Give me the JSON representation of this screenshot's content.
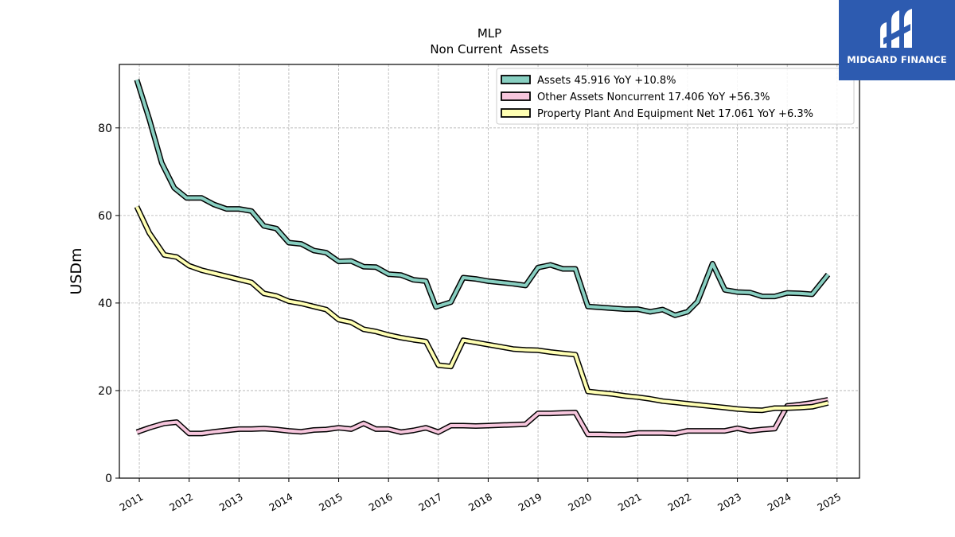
{
  "chart_data": {
    "type": "line",
    "title": "MLP",
    "subtitle": "Non Current  Assets",
    "ylabel": "USDm",
    "xlim": [
      2010.6,
      2025.45
    ],
    "ylim": [
      0,
      94.5
    ],
    "yticks": [
      0,
      20,
      40,
      60,
      80
    ],
    "xticks": [
      "2011",
      "2012",
      "2013",
      "2014",
      "2015",
      "2016",
      "2017",
      "2018",
      "2019",
      "2020",
      "2021",
      "2022",
      "2023",
      "2024",
      "2025"
    ],
    "grid": true,
    "legend_position": "top-right",
    "series": [
      {
        "name": "Assets  45.916 YoY +10.8%",
        "color": "#88cfc1",
        "points": [
          [
            2010.95,
            91
          ],
          [
            2011.2,
            82
          ],
          [
            2011.45,
            72
          ],
          [
            2011.7,
            66.3
          ],
          [
            2011.95,
            64
          ],
          [
            2012.25,
            64
          ],
          [
            2012.5,
            62.5
          ],
          [
            2012.75,
            61.5
          ],
          [
            2013.0,
            61.5
          ],
          [
            2013.25,
            61
          ],
          [
            2013.5,
            57.6
          ],
          [
            2013.75,
            57
          ],
          [
            2014.0,
            53.8
          ],
          [
            2014.25,
            53.5
          ],
          [
            2014.5,
            52
          ],
          [
            2014.75,
            51.5
          ],
          [
            2015.0,
            49.5
          ],
          [
            2015.25,
            49.6
          ],
          [
            2015.5,
            48.3
          ],
          [
            2015.75,
            48.2
          ],
          [
            2016.0,
            46.6
          ],
          [
            2016.25,
            46.4
          ],
          [
            2016.5,
            45.3
          ],
          [
            2016.75,
            45
          ],
          [
            2016.95,
            39.1
          ],
          [
            2017.25,
            40.2
          ],
          [
            2017.5,
            45.8
          ],
          [
            2017.75,
            45.5
          ],
          [
            2018.0,
            45
          ],
          [
            2018.25,
            44.7
          ],
          [
            2018.5,
            44.4
          ],
          [
            2018.75,
            44
          ],
          [
            2019.0,
            48.1
          ],
          [
            2019.25,
            48.7
          ],
          [
            2019.5,
            47.8
          ],
          [
            2019.75,
            47.8
          ],
          [
            2020.0,
            39.2
          ],
          [
            2020.25,
            39
          ],
          [
            2020.5,
            38.8
          ],
          [
            2020.75,
            38.6
          ],
          [
            2021.0,
            38.6
          ],
          [
            2021.25,
            38
          ],
          [
            2021.5,
            38.5
          ],
          [
            2021.75,
            37.2
          ],
          [
            2022.0,
            38
          ],
          [
            2022.2,
            40.3
          ],
          [
            2022.5,
            49
          ],
          [
            2022.75,
            43
          ],
          [
            2023.0,
            42.5
          ],
          [
            2023.25,
            42.4
          ],
          [
            2023.5,
            41.5
          ],
          [
            2023.75,
            41.5
          ],
          [
            2024.0,
            42.3
          ],
          [
            2024.25,
            42.2
          ],
          [
            2024.5,
            42
          ],
          [
            2024.82,
            46.5
          ]
        ]
      },
      {
        "name": "Other Assets Noncurrent  17.406 YoY +56.3%",
        "color": "#f7c6dd",
        "points": [
          [
            2010.95,
            10.5
          ],
          [
            2011.2,
            11.5
          ],
          [
            2011.5,
            12.5
          ],
          [
            2011.75,
            12.8
          ],
          [
            2012.0,
            10.2
          ],
          [
            2012.25,
            10.2
          ],
          [
            2012.5,
            10.6
          ],
          [
            2012.75,
            10.9
          ],
          [
            2013.0,
            11.2
          ],
          [
            2013.25,
            11.2
          ],
          [
            2013.5,
            11.3
          ],
          [
            2013.75,
            11.1
          ],
          [
            2014.0,
            10.8
          ],
          [
            2014.25,
            10.6
          ],
          [
            2014.5,
            11
          ],
          [
            2014.75,
            11.1
          ],
          [
            2015.0,
            11.5
          ],
          [
            2015.25,
            11.2
          ],
          [
            2015.5,
            12.5
          ],
          [
            2015.75,
            11.2
          ],
          [
            2016.0,
            11.2
          ],
          [
            2016.25,
            10.5
          ],
          [
            2016.5,
            10.9
          ],
          [
            2016.75,
            11.5
          ],
          [
            2017.0,
            10.5
          ],
          [
            2017.25,
            12
          ],
          [
            2017.5,
            12
          ],
          [
            2017.75,
            11.9
          ],
          [
            2018.0,
            12
          ],
          [
            2018.25,
            12.1
          ],
          [
            2018.5,
            12.2
          ],
          [
            2018.75,
            12.3
          ],
          [
            2019.0,
            14.8
          ],
          [
            2019.25,
            14.8
          ],
          [
            2019.5,
            14.9
          ],
          [
            2019.75,
            15
          ],
          [
            2020.0,
            10
          ],
          [
            2020.25,
            10
          ],
          [
            2020.5,
            9.9
          ],
          [
            2020.75,
            9.9
          ],
          [
            2021.0,
            10.3
          ],
          [
            2021.25,
            10.3
          ],
          [
            2021.5,
            10.3
          ],
          [
            2021.75,
            10.2
          ],
          [
            2022.0,
            10.8
          ],
          [
            2022.25,
            10.8
          ],
          [
            2022.5,
            10.8
          ],
          [
            2022.75,
            10.8
          ],
          [
            2023.0,
            11.4
          ],
          [
            2023.25,
            10.8
          ],
          [
            2023.5,
            11.1
          ],
          [
            2023.75,
            11.3
          ],
          [
            2024.0,
            16.5
          ],
          [
            2024.25,
            16.8
          ],
          [
            2024.5,
            17.2
          ],
          [
            2024.82,
            17.9
          ]
        ]
      },
      {
        "name": "Property Plant And Equipment Net  17.061 YoY +6.3%",
        "color": "#ffffb3",
        "points": [
          [
            2010.95,
            62
          ],
          [
            2011.2,
            56
          ],
          [
            2011.5,
            51
          ],
          [
            2011.75,
            50.5
          ],
          [
            2012.0,
            48.5
          ],
          [
            2012.25,
            47.5
          ],
          [
            2012.5,
            46.8
          ],
          [
            2012.75,
            46.1
          ],
          [
            2013.0,
            45.4
          ],
          [
            2013.25,
            44.7
          ],
          [
            2013.5,
            42.2
          ],
          [
            2013.75,
            41.6
          ],
          [
            2014.0,
            40.4
          ],
          [
            2014.25,
            39.9
          ],
          [
            2014.5,
            39.2
          ],
          [
            2014.75,
            38.5
          ],
          [
            2015.0,
            36.2
          ],
          [
            2015.25,
            35.6
          ],
          [
            2015.5,
            34
          ],
          [
            2015.75,
            33.5
          ],
          [
            2016.0,
            32.7
          ],
          [
            2016.25,
            32.1
          ],
          [
            2016.5,
            31.6
          ],
          [
            2016.75,
            31.2
          ],
          [
            2017.0,
            25.8
          ],
          [
            2017.25,
            25.5
          ],
          [
            2017.5,
            31.5
          ],
          [
            2017.75,
            31
          ],
          [
            2018.0,
            30.5
          ],
          [
            2018.25,
            30
          ],
          [
            2018.5,
            29.5
          ],
          [
            2018.75,
            29.3
          ],
          [
            2019.0,
            29.2
          ],
          [
            2019.25,
            28.8
          ],
          [
            2019.5,
            28.5
          ],
          [
            2019.75,
            28.2
          ],
          [
            2020.0,
            19.8
          ],
          [
            2020.25,
            19.5
          ],
          [
            2020.5,
            19.2
          ],
          [
            2020.75,
            18.8
          ],
          [
            2021.0,
            18.5
          ],
          [
            2021.25,
            18.1
          ],
          [
            2021.5,
            17.6
          ],
          [
            2021.75,
            17.3
          ],
          [
            2022.0,
            17
          ],
          [
            2022.25,
            16.7
          ],
          [
            2022.5,
            16.4
          ],
          [
            2022.75,
            16.1
          ],
          [
            2023.0,
            15.8
          ],
          [
            2023.25,
            15.6
          ],
          [
            2023.5,
            15.5
          ],
          [
            2023.75,
            16
          ],
          [
            2024.0,
            16
          ],
          [
            2024.25,
            16.1
          ],
          [
            2024.5,
            16.3
          ],
          [
            2024.82,
            17.2
          ]
        ]
      }
    ]
  },
  "logo": {
    "text": "MIDGARD FINANCE",
    "background": "#2d5bb0"
  }
}
